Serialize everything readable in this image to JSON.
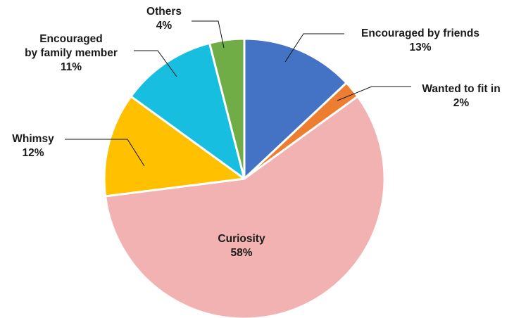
{
  "chart_data": {
    "type": "pie",
    "title": "",
    "start": "top",
    "direction": "clockwise",
    "slices": [
      {
        "label": "Encouraged by friends",
        "value": 13,
        "value_label": "13%",
        "color": "#4472C4"
      },
      {
        "label": "Wanted to fit in",
        "value": 2,
        "value_label": "2%",
        "color": "#ED7D31"
      },
      {
        "label": "Curiosity",
        "value": 58,
        "value_label": "58%",
        "color": "#F2B2B2"
      },
      {
        "label": "Whimsy",
        "value": 12,
        "value_label": "12%",
        "color": "#FFC000"
      },
      {
        "label": "Encouraged by family member",
        "value": 11,
        "value_label": "11%",
        "color": "#17BEE0"
      },
      {
        "label": "Others",
        "value": 4,
        "value_label": "4%",
        "color": "#70AD47"
      }
    ]
  }
}
